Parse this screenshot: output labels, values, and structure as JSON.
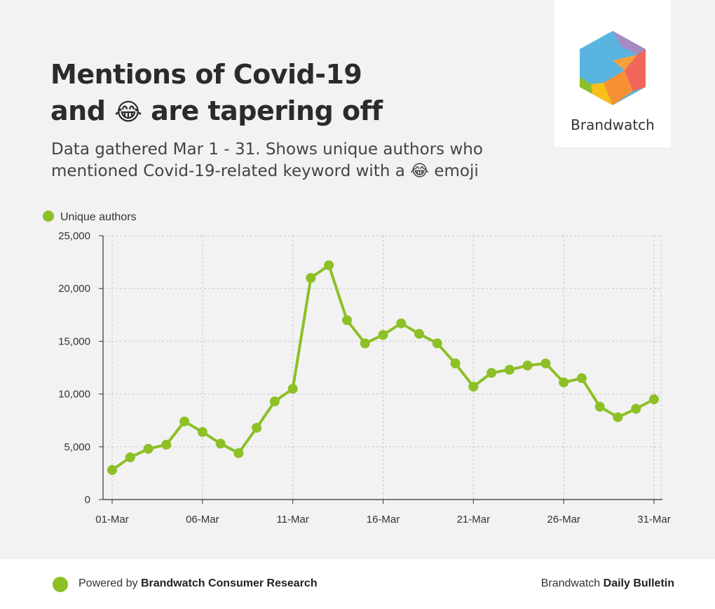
{
  "header": {
    "title_line1": "Mentions of Covid-19",
    "title_line2_pre": "and",
    "title_line2_post": "are tapering off",
    "title_emoji": "😂",
    "subtitle_line1": "Data gathered Mar 1 - 31. Shows unique authors who",
    "subtitle_line2_pre": "mentioned Covid-19-related keyword with a",
    "subtitle_emoji": "😂",
    "subtitle_line2_post": "emoji"
  },
  "logo": {
    "text": "Brandwatch"
  },
  "footer": {
    "powered_by": "Powered by",
    "powered_brand": "Brandwatch Consumer Research",
    "right_pre": "Brandwatch",
    "right_bold": "Daily Bulletin"
  },
  "colors": {
    "series": "#8cc026",
    "grid": "#c8c8c8",
    "axis": "#333333"
  },
  "chart_data": {
    "type": "line",
    "title": "",
    "xlabel": "",
    "ylabel": "",
    "ylim": [
      0,
      25000
    ],
    "yticks": [
      0,
      5000,
      10000,
      15000,
      20000,
      25000
    ],
    "ytick_labels": [
      "0",
      "5,000",
      "10,000",
      "15,000",
      "20,000",
      "25,000"
    ],
    "x": [
      "01-Mar",
      "02-Mar",
      "03-Mar",
      "04-Mar",
      "05-Mar",
      "06-Mar",
      "07-Mar",
      "08-Mar",
      "09-Mar",
      "10-Mar",
      "11-Mar",
      "12-Mar",
      "13-Mar",
      "14-Mar",
      "15-Mar",
      "16-Mar",
      "17-Mar",
      "18-Mar",
      "19-Mar",
      "20-Mar",
      "21-Mar",
      "22-Mar",
      "23-Mar",
      "24-Mar",
      "25-Mar",
      "26-Mar",
      "27-Mar",
      "28-Mar",
      "29-Mar",
      "30-Mar",
      "31-Mar"
    ],
    "xtick_labels": [
      "01-Mar",
      "06-Mar",
      "11-Mar",
      "16-Mar",
      "21-Mar",
      "26-Mar",
      "31-Mar"
    ],
    "xtick_index": [
      0,
      5,
      10,
      15,
      20,
      25,
      30
    ],
    "legend": "top-left",
    "grid": true,
    "series": [
      {
        "name": "Unique authors",
        "values": [
          2800,
          4000,
          4800,
          5200,
          7400,
          6400,
          5300,
          4400,
          6800,
          9300,
          10500,
          21000,
          22200,
          17000,
          14800,
          15600,
          16700,
          15700,
          14800,
          12900,
          10700,
          12000,
          12300,
          12700,
          12900,
          11100,
          11500,
          8800,
          7800,
          8600,
          9500
        ]
      }
    ]
  }
}
